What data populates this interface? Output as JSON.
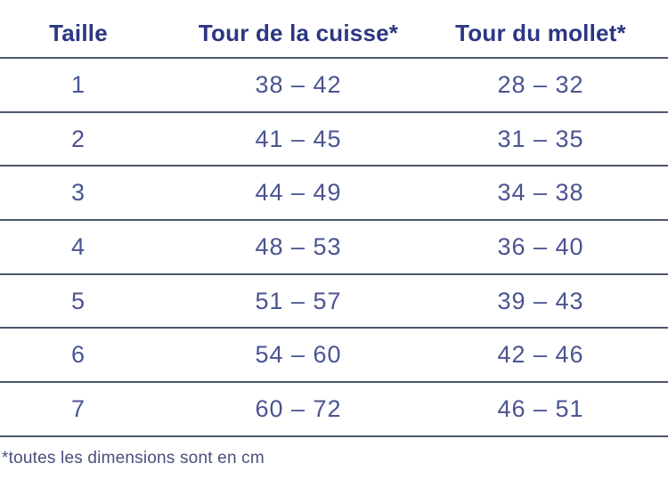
{
  "table": {
    "headers": [
      {
        "label": "Taille"
      },
      {
        "label": "Tour de la cuisse*"
      },
      {
        "label": "Tour du mollet*"
      }
    ],
    "rows": [
      {
        "taille": "1",
        "cuisse": "38 – 42",
        "mollet": "28 – 32"
      },
      {
        "taille": "2",
        "cuisse": "41 – 45",
        "mollet": "31 – 35"
      },
      {
        "taille": "3",
        "cuisse": "44 – 49",
        "mollet": "34 – 38"
      },
      {
        "taille": "4",
        "cuisse": "48 – 53",
        "mollet": "36 – 40"
      },
      {
        "taille": "5",
        "cuisse": "51 – 57",
        "mollet": "39 – 43"
      },
      {
        "taille": "6",
        "cuisse": "54 – 60",
        "mollet": "42 – 46"
      },
      {
        "taille": "7",
        "cuisse": "60 – 72",
        "mollet": "46 – 51"
      }
    ],
    "footnote": "*toutes les dimensions sont en cm",
    "units": "cm"
  },
  "colors": {
    "header_text": "#2b3782",
    "body_text": "#4a5490",
    "footnote_text": "#474f7e",
    "rule_line": "#4d566e",
    "background": "#ffffff"
  }
}
